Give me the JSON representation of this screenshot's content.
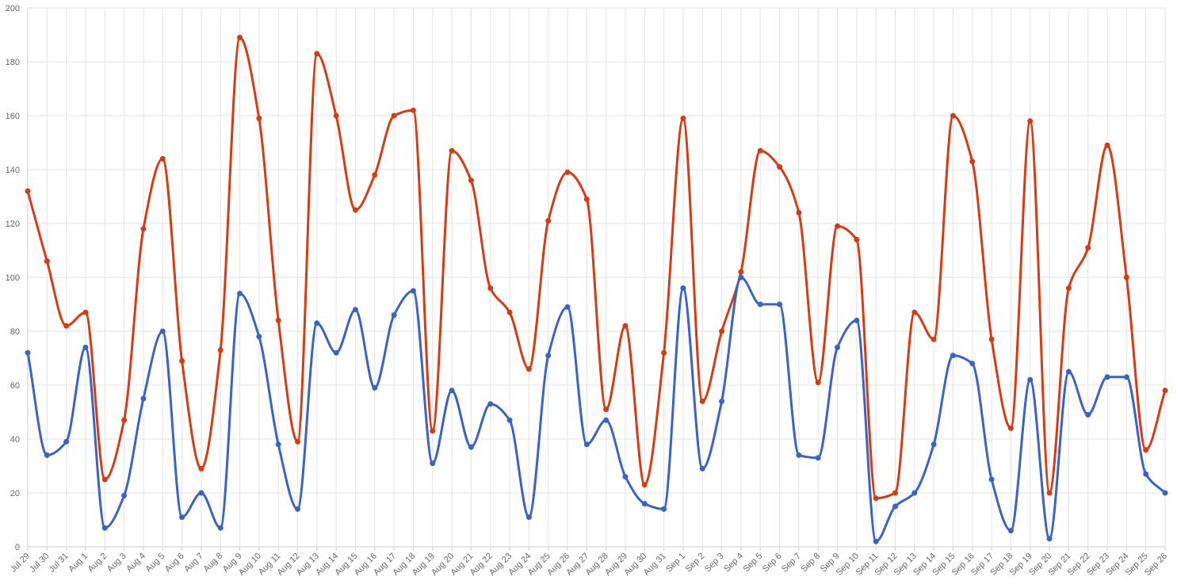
{
  "chart_data": {
    "type": "line",
    "title": "",
    "xlabel": "",
    "ylabel": "",
    "ylim": [
      0,
      200
    ],
    "yticks": [
      0,
      20,
      40,
      60,
      80,
      100,
      120,
      140,
      160,
      180,
      200
    ],
    "grid": true,
    "smooth": true,
    "categories": [
      "Jul 29",
      "Jul 30",
      "Jul 31",
      "Aug 1",
      "Aug 2",
      "Aug 3",
      "Aug 4",
      "Aug 5",
      "Aug 6",
      "Aug 7",
      "Aug 8",
      "Aug 9",
      "Aug 10",
      "Aug 11",
      "Aug 12",
      "Aug 13",
      "Aug 14",
      "Aug 15",
      "Aug 16",
      "Aug 17",
      "Aug 18",
      "Aug 19",
      "Aug 20",
      "Aug 21",
      "Aug 22",
      "Aug 23",
      "Aug 24",
      "Aug 25",
      "Aug 26",
      "Aug 27",
      "Aug 28",
      "Aug 29",
      "Aug 30",
      "Aug 31",
      "Sep 1",
      "Sep 2",
      "Sep 3",
      "Sep 4",
      "Sep 5",
      "Sep 6",
      "Sep 7",
      "Sep 8",
      "Sep 9",
      "Sep 10",
      "Sep 11",
      "Sep 12",
      "Sep 13",
      "Sep 14",
      "Sep 15",
      "Sep 16",
      "Sep 17",
      "Sep 18",
      "Sep 19",
      "Sep 20",
      "Sep 21",
      "Sep 22",
      "Sep 23",
      "Sep 24",
      "Sep 25",
      "Sep 26"
    ],
    "series": [
      {
        "color": "#d63b12",
        "values": [
          132,
          106,
          82,
          87,
          25,
          47,
          118,
          144,
          69,
          29,
          73,
          189,
          159,
          84,
          39,
          183,
          160,
          125,
          138,
          160,
          162,
          43,
          147,
          136,
          96,
          87,
          66,
          121,
          139,
          129,
          51,
          82,
          23,
          72,
          159,
          54,
          80,
          102,
          147,
          141,
          124,
          61,
          119,
          114,
          18,
          20,
          87,
          77,
          160,
          143,
          77,
          44,
          158,
          20,
          96,
          111,
          149,
          100,
          36,
          58
        ]
      },
      {
        "color": "#3a63c6",
        "values": [
          72,
          34,
          39,
          74,
          7,
          19,
          55,
          80,
          11,
          20,
          7,
          94,
          78,
          38,
          14,
          83,
          72,
          88,
          59,
          86,
          95,
          31,
          58,
          37,
          53,
          47,
          11,
          71,
          89,
          38,
          47,
          26,
          16,
          14,
          96,
          29,
          54,
          100,
          90,
          90,
          34,
          33,
          74,
          84,
          2,
          15,
          20,
          38,
          71,
          68,
          25,
          6,
          62,
          3,
          65,
          49,
          63,
          63,
          27,
          20
        ]
      }
    ]
  }
}
